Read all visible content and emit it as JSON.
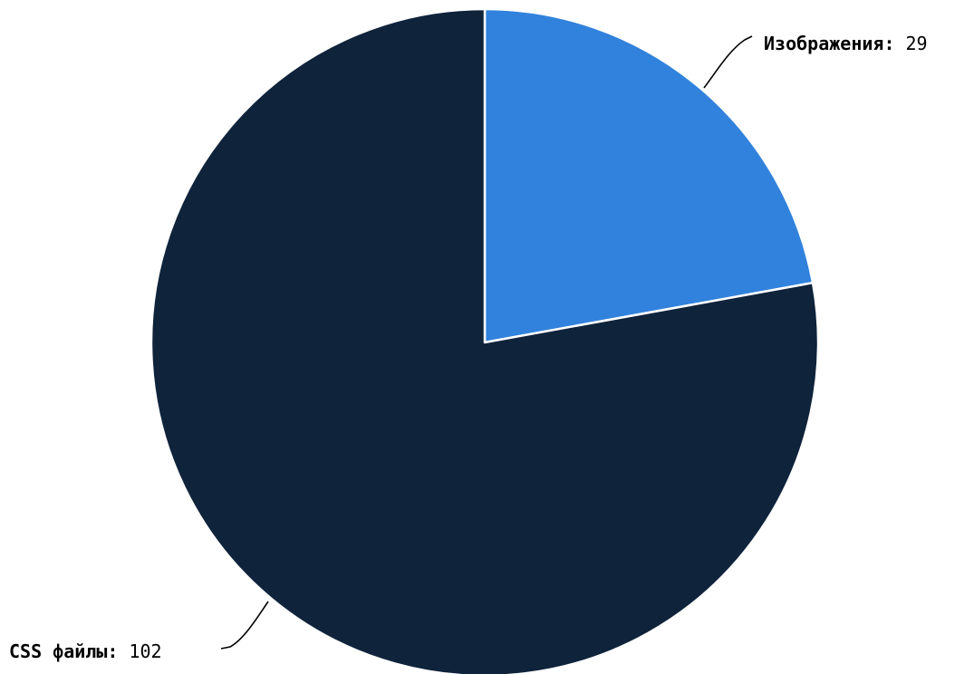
{
  "chart_data": {
    "type": "pie",
    "title": "",
    "start_angle_deg": 0,
    "direction": "clockwise",
    "slices": [
      {
        "label": "Изображения",
        "value": 29,
        "color": "#3182dc"
      },
      {
        "label": "CSS файлы",
        "value": 102,
        "color": "#0f233b"
      }
    ],
    "label_separator": ":",
    "legend": "none",
    "label_style": "outside-with-leader-lines"
  }
}
